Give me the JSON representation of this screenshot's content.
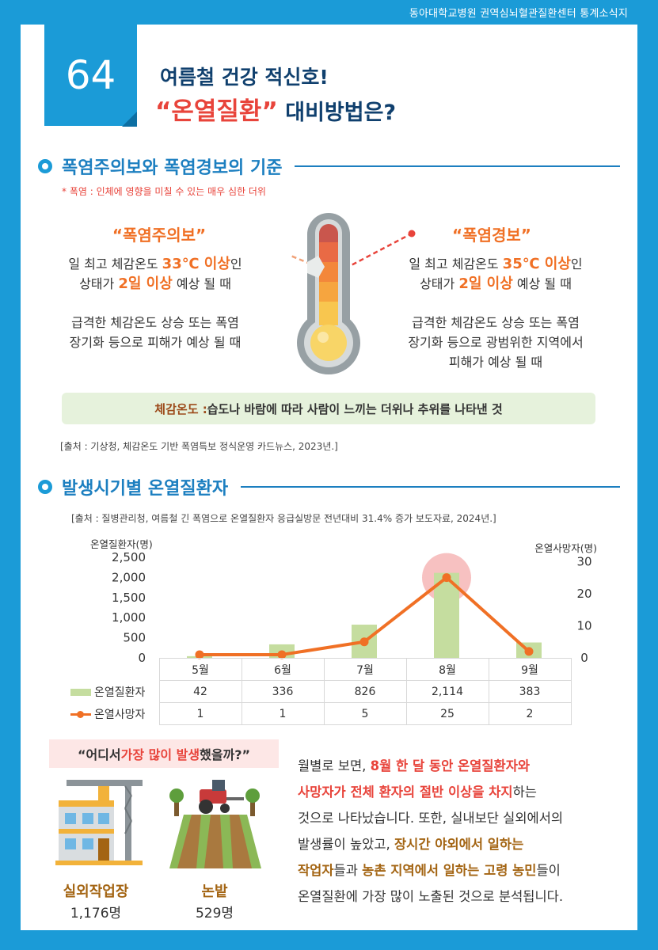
{
  "top_caption": "동아대학교병원 권역심뇌혈관질환센터 통계소식지",
  "header": {
    "issue_number": "64",
    "title_line1": "여름철 건강 적신호!",
    "title_quoted": "“온열질환”",
    "title_rest": " 대비방법은?"
  },
  "section1": {
    "title": "폭염주의보와 폭염경보의 기준",
    "note": "* 폭염 : 인체에 영향을 미칠 수 있는 매우 심한 더위",
    "advisory": {
      "label": "“폭염주의보”",
      "line1_a": "일 최고 체감온도 ",
      "line1_hl": "33℃ 이상",
      "line1_b": "인",
      "line2_a": "상태가 ",
      "line2_hl": "2일 이상",
      "line2_b": " 예상 될 때",
      "line3": "급격한 체감온도 상승 또는 폭염",
      "line4": "장기화 등으로 피해가 예상 될 때"
    },
    "warning": {
      "label": "“폭염경보”",
      "line1_a": "일 최고 체감온도 ",
      "line1_hl": "35℃ 이상",
      "line1_b": "인",
      "line2_a": "상태가 ",
      "line2_hl": "2일 이상",
      "line2_b": " 예상 될 때",
      "line3": "급격한 체감온도 상승 또는 폭염",
      "line4": "장기화 등으로 광범위한 지역에서",
      "line5": "피해가 예상 될 때"
    },
    "definition_key": "체감온도 :",
    "definition_text": " 습도나 바람에 따라 사람이 느끼는 더위나 추위를 나타낸 것",
    "source": "[출처 : 기상청, 체감온도 기반 폭염특보 정식운영 카드뉴스, 2023년.]"
  },
  "section2": {
    "title": "발생시기별 온열질환자",
    "source": "[출처 : 질병관리청, 여름철 긴 폭염으로 온열질환자 응급실방문 전년대비 31.4% 증가 보도자료, 2024년.]"
  },
  "chart_data": {
    "type": "bar",
    "categories": [
      "5월",
      "6월",
      "7월",
      "8월",
      "9월"
    ],
    "series": [
      {
        "name": "온열질환자",
        "type": "bar",
        "axis": "left",
        "values": [
          42,
          336,
          826,
          2114,
          383
        ],
        "labels": [
          "42",
          "336",
          "826",
          "2,114",
          "383"
        ],
        "color": "#c5dd9f"
      },
      {
        "name": "온열사망자",
        "type": "line",
        "axis": "right",
        "values": [
          1,
          1,
          5,
          25,
          2
        ],
        "labels": [
          "1",
          "1",
          "5",
          "25",
          "2"
        ],
        "color": "#f07025"
      }
    ],
    "ylabel_left": "온열질환자(명)",
    "ylabel_right": "온열사망자(명)",
    "ylim_left": [
      0,
      2500
    ],
    "ylim_right": [
      0,
      35
    ],
    "yticks_left": [
      0,
      500,
      1000,
      1500,
      2000,
      2500
    ],
    "yticks_left_labels": [
      "0",
      "500",
      "1,000",
      "1,500",
      "2,000",
      "2,500"
    ],
    "yticks_right": [
      0,
      10,
      20,
      30
    ],
    "yticks_right_labels": [
      "0",
      "10",
      "20",
      "30"
    ],
    "highlight_category": "8월",
    "highlight_color": "#f3a7a7"
  },
  "bottom": {
    "question_a": "“어디서 ",
    "question_red": "가장 많이 발생",
    "question_b": "했을까?”",
    "place1_name": "실외작업장",
    "place1_count": "1,176명",
    "place2_name": "논밭",
    "place2_count": "529명",
    "p1_a": "월별로 보면, ",
    "p1_r": "8월 한 달 동안 온열질환자와",
    "p2_r": "사망자가 전체 환자의 절반 이상을 차지",
    "p2_b": "하는",
    "p3": "것으로 나타났습니다. 또한, 실내보단 실외에서의",
    "p4_a": "발생률이 높았고, ",
    "p4_o": "장시간 야외에서 일하는",
    "p5_o1": "작업자",
    "p5_b": "들과 ",
    "p5_o2": "농촌 지역에서 일하는 고령 농민",
    "p5_c": "들이",
    "p6": "온열질환에 가장 많이 노출된 것으로 분석됩니다."
  }
}
